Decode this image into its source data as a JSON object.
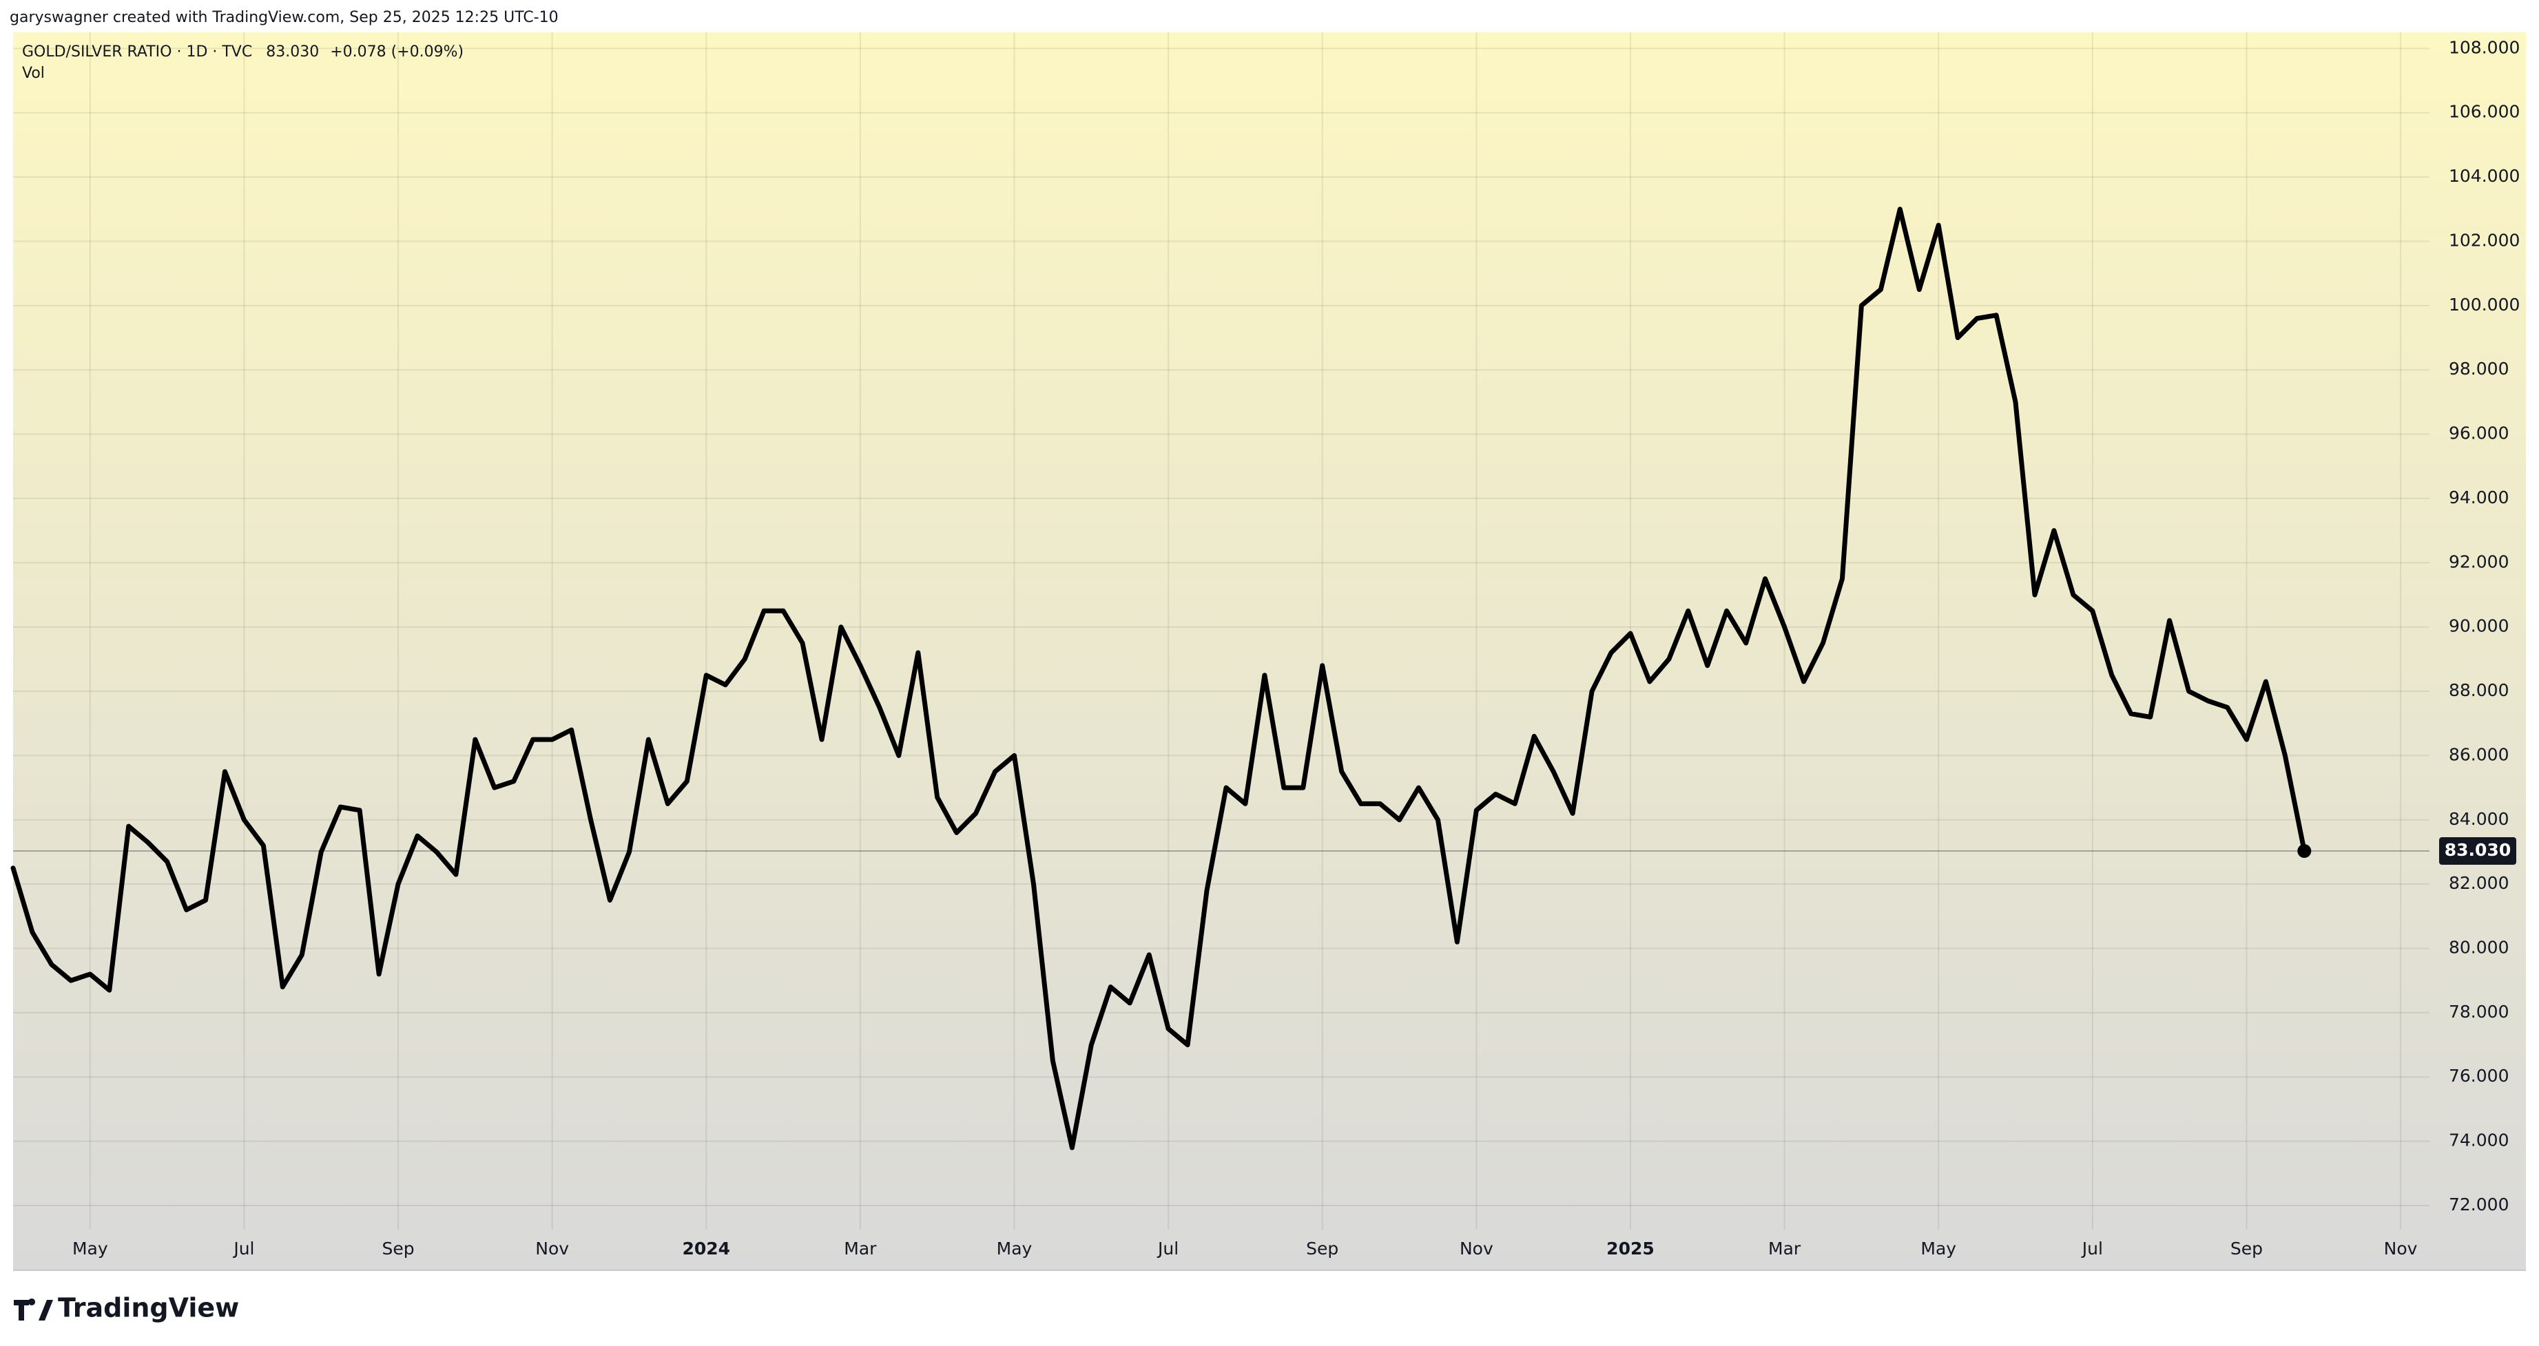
{
  "attribution": "garyswagner created with TradingView.com, Sep 25, 2025 12:25 UTC-10",
  "brand": "TradingView",
  "chart_data": {
    "type": "line",
    "title": "GOLD/SILVER RATIO · 1D · TVC",
    "change": "+0.078 (+0.09%)",
    "indicator": "Vol",
    "color": "#000000",
    "grid": true,
    "ylim": [
      71.25,
      108.5
    ],
    "yticks": [
      {
        "value": 72,
        "label": "72.000"
      },
      {
        "value": 74,
        "label": "74.000"
      },
      {
        "value": 76,
        "label": "76.000"
      },
      {
        "value": 78,
        "label": "78.000"
      },
      {
        "value": 80,
        "label": "80.000"
      },
      {
        "value": 82,
        "label": "82.000"
      },
      {
        "value": 84,
        "label": "84.000"
      },
      {
        "value": 86,
        "label": "86.000"
      },
      {
        "value": 88,
        "label": "88.000"
      },
      {
        "value": 90,
        "label": "90.000"
      },
      {
        "value": 92,
        "label": "92.000"
      },
      {
        "value": 94,
        "label": "94.000"
      },
      {
        "value": 96,
        "label": "96.000"
      },
      {
        "value": 98,
        "label": "98.000"
      },
      {
        "value": 100,
        "label": "100.000"
      },
      {
        "value": 102,
        "label": "102.000"
      },
      {
        "value": 104,
        "label": "104.000"
      },
      {
        "value": 106,
        "label": "106.000"
      },
      {
        "value": 108,
        "label": "108.000"
      }
    ],
    "categories": [
      null,
      null,
      null,
      null,
      "May",
      null,
      null,
      null,
      null,
      null,
      null,
      null,
      "Jul",
      null,
      null,
      null,
      null,
      null,
      null,
      null,
      "Sep",
      null,
      null,
      null,
      null,
      null,
      null,
      null,
      "Nov",
      null,
      null,
      null,
      null,
      null,
      null,
      null,
      "2024",
      null,
      null,
      null,
      null,
      null,
      null,
      null,
      "Mar",
      null,
      null,
      null,
      null,
      null,
      null,
      null,
      "May",
      null,
      null,
      null,
      null,
      null,
      null,
      null,
      "Jul",
      null,
      null,
      null,
      null,
      null,
      null,
      null,
      "Sep",
      null,
      null,
      null,
      null,
      null,
      null,
      null,
      "Nov",
      null,
      null,
      null,
      null,
      null,
      null,
      null,
      "2025",
      null,
      null,
      null,
      null,
      null,
      null,
      null,
      "Mar",
      null,
      null,
      null,
      null,
      null,
      null,
      null,
      "May",
      null,
      null,
      null,
      null,
      null,
      null,
      null,
      "Jul",
      null,
      null,
      null,
      null,
      null,
      null,
      null,
      "Sep",
      null,
      null,
      null,
      null,
      null,
      null,
      null,
      "Nov"
    ],
    "values": [
      82.5,
      80.5,
      79.5,
      79.0,
      79.2,
      78.7,
      83.8,
      83.3,
      82.7,
      81.2,
      81.5,
      85.5,
      84.0,
      83.2,
      78.8,
      79.8,
      83.0,
      84.4,
      84.3,
      79.2,
      82.0,
      83.5,
      83.0,
      82.3,
      86.5,
      85.0,
      85.2,
      86.5,
      86.5,
      86.8,
      84.0,
      81.5,
      83.0,
      86.5,
      84.5,
      85.2,
      88.5,
      88.2,
      89.0,
      90.5,
      90.5,
      89.5,
      86.5,
      90.0,
      88.8,
      87.5,
      86.0,
      89.2,
      84.7,
      83.6,
      84.2,
      85.5,
      86.0,
      82.0,
      76.5,
      73.8,
      77.0,
      78.8,
      78.3,
      79.8,
      77.5,
      77.0,
      81.8,
      85.0,
      84.5,
      88.5,
      85.0,
      85.0,
      88.8,
      85.5,
      84.5,
      84.5,
      84.0,
      85.0,
      84.0,
      80.2,
      84.3,
      84.8,
      84.5,
      86.6,
      85.5,
      84.2,
      88.0,
      89.2,
      89.8,
      88.3,
      89.0,
      90.5,
      88.8,
      90.5,
      89.5,
      91.5,
      90.0,
      88.3,
      89.5,
      91.5,
      100.0,
      100.5,
      103.0,
      100.5,
      102.5,
      99.0,
      99.6,
      99.7,
      97.0,
      91.0,
      93.0,
      91.0,
      90.5,
      88.5,
      87.3,
      87.2,
      90.2,
      88.0,
      87.7,
      87.5,
      86.5,
      88.3,
      86.0,
      83.03,
      null,
      null,
      null,
      null,
      null
    ],
    "value_labels": [
      null,
      null,
      null,
      null,
      null,
      null,
      null,
      null,
      null,
      null,
      null,
      null,
      null,
      null,
      null,
      null,
      null,
      null,
      null,
      null,
      null,
      null,
      null,
      null,
      null,
      null,
      null,
      null,
      null,
      null,
      null,
      null,
      null,
      null,
      null,
      null,
      null,
      null,
      null,
      null,
      null,
      null,
      null,
      null,
      null,
      null,
      null,
      null,
      null,
      null,
      null,
      null,
      null,
      null,
      null,
      null,
      null,
      null,
      null,
      null,
      null,
      null,
      null,
      null,
      null,
      null,
      null,
      null,
      null,
      null,
      null,
      null,
      null,
      null,
      null,
      null,
      null,
      null,
      null,
      null,
      null,
      null,
      null,
      null,
      null,
      null,
      null,
      null,
      null,
      null,
      null,
      null,
      null,
      null,
      null,
      null,
      null,
      null,
      null,
      null,
      null,
      null,
      null,
      null,
      null,
      null,
      null,
      null,
      null,
      null,
      null,
      null,
      null,
      null,
      null,
      null,
      null,
      null,
      null,
      "83.030",
      null,
      null,
      null,
      null,
      null
    ]
  }
}
